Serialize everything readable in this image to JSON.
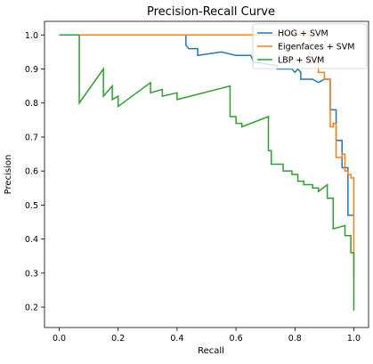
{
  "chart_data": {
    "type": "line",
    "title": "Precision-Recall Curve",
    "xlabel": "Recall",
    "ylabel": "Precision",
    "xlim": [
      -0.05,
      1.05
    ],
    "ylim": [
      0.14,
      1.04
    ],
    "xticks": [
      0.0,
      0.2,
      0.4,
      0.6,
      0.8,
      1.0
    ],
    "xtick_labels": [
      "0.0",
      "0.2",
      "0.4",
      "0.6",
      "0.8",
      "1.0"
    ],
    "yticks": [
      0.2,
      0.3,
      0.4,
      0.5,
      0.6,
      0.7,
      0.8,
      0.9,
      1.0
    ],
    "ytick_labels": [
      "0.2",
      "0.3",
      "0.4",
      "0.5",
      "0.6",
      "0.7",
      "0.8",
      "0.9",
      "1.0"
    ],
    "grid": false,
    "legend_position": "top-right",
    "series": [
      {
        "name": "HOG + SVM",
        "color": "#1f77b4",
        "x": [
          0.0,
          0.43,
          0.43,
          0.44,
          0.47,
          0.47,
          0.55,
          0.6,
          0.65,
          0.66,
          0.74,
          0.74,
          0.79,
          0.8,
          0.81,
          0.82,
          0.82,
          0.85,
          0.86,
          0.88,
          0.9,
          0.92,
          0.92,
          0.94,
          0.94,
          0.96,
          0.96,
          0.98,
          0.98,
          1.0
        ],
        "y": [
          1.0,
          1.0,
          0.97,
          0.96,
          0.96,
          0.94,
          0.95,
          0.94,
          0.94,
          0.92,
          0.91,
          0.9,
          0.9,
          0.89,
          0.9,
          0.89,
          0.87,
          0.87,
          0.87,
          0.86,
          0.87,
          0.87,
          0.78,
          0.78,
          0.69,
          0.69,
          0.61,
          0.61,
          0.47,
          0.47
        ]
      },
      {
        "name": "Eigenfaces + SVM",
        "color": "#ff7f0e",
        "x": [
          0.0,
          0.85,
          0.85,
          0.88,
          0.88,
          0.9,
          0.9,
          0.92,
          0.92,
          0.93,
          0.93,
          0.94,
          0.94,
          0.96,
          0.96,
          0.97,
          0.97,
          0.98,
          0.98,
          0.99,
          0.99,
          1.0,
          1.0
        ],
        "y": [
          1.0,
          1.0,
          0.92,
          0.92,
          0.89,
          0.89,
          0.87,
          0.87,
          0.73,
          0.73,
          0.74,
          0.74,
          0.64,
          0.64,
          0.65,
          0.65,
          0.6,
          0.6,
          0.59,
          0.59,
          0.58,
          0.58,
          0.29
        ]
      },
      {
        "name": "LBP + SVM",
        "color": "#2ca02c",
        "x": [
          0.0,
          0.068,
          0.068,
          0.15,
          0.15,
          0.18,
          0.18,
          0.2,
          0.2,
          0.31,
          0.31,
          0.35,
          0.35,
          0.4,
          0.4,
          0.58,
          0.58,
          0.6,
          0.6,
          0.62,
          0.62,
          0.71,
          0.71,
          0.72,
          0.72,
          0.76,
          0.76,
          0.79,
          0.79,
          0.81,
          0.81,
          0.83,
          0.83,
          0.86,
          0.86,
          0.88,
          0.88,
          0.91,
          0.91,
          0.93,
          0.93,
          0.97,
          0.97,
          0.99,
          0.99,
          1.0,
          1.0
        ],
        "y": [
          1.0,
          1.0,
          0.8,
          0.9,
          0.82,
          0.85,
          0.81,
          0.82,
          0.79,
          0.86,
          0.83,
          0.84,
          0.82,
          0.83,
          0.81,
          0.85,
          0.76,
          0.76,
          0.74,
          0.74,
          0.73,
          0.76,
          0.66,
          0.66,
          0.62,
          0.62,
          0.6,
          0.6,
          0.59,
          0.59,
          0.57,
          0.57,
          0.56,
          0.56,
          0.55,
          0.55,
          0.54,
          0.56,
          0.52,
          0.52,
          0.43,
          0.44,
          0.41,
          0.41,
          0.36,
          0.36,
          0.19
        ]
      }
    ]
  }
}
